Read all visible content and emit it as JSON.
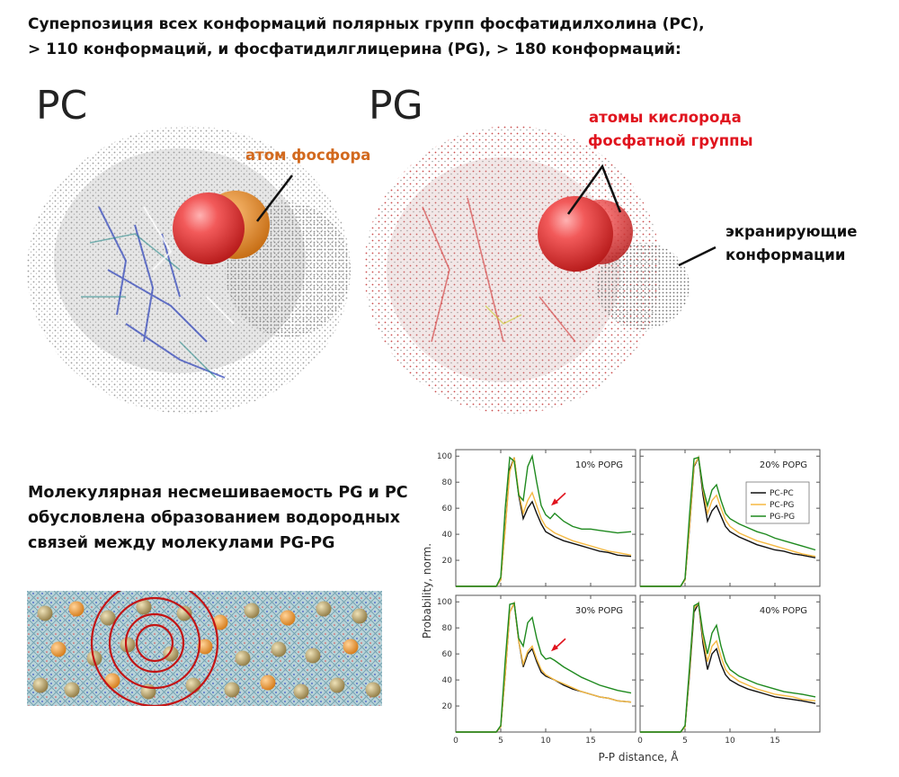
{
  "header": {
    "line1": "Суперпозиция всех конформаций полярных групп фосфатидилхолина (PC),",
    "line2": "> 110 конформаций, и фосфатидилглицерина (PG), > 180 конформаций:"
  },
  "molecules": {
    "pc_label": "PC",
    "pg_label": "PG",
    "phosphorus_label": "атом фосфора",
    "oxygen_label_line1": "атомы кислорода",
    "oxygen_label_line2": "фосфатной группы",
    "screening_label_line1": "экранирующие",
    "screening_label_line2": "конформации"
  },
  "caption": {
    "line1": "Молекулярная несмешиваемость PG и PC",
    "line2": "обусловлена образованием водородных",
    "line3": "связей между молекулами PG-PG"
  },
  "colors": {
    "accent_orange": "#d2691e",
    "accent_red": "#e0141e",
    "pc_pc": "#111111",
    "pc_pg": "#f5b942",
    "pg_pg": "#1f8a1f"
  },
  "chart_data": {
    "type": "line",
    "xlabel": "P-P distance, Å",
    "ylabel": "Probability, norm.",
    "xlim": [
      0,
      20
    ],
    "ylim": [
      0,
      105
    ],
    "xticks": [
      "0",
      "5",
      "10",
      "15"
    ],
    "yticks": [
      "20",
      "40",
      "60",
      "80",
      "100"
    ],
    "legend": [
      "PC-PC",
      "PC-PG",
      "PG-PG"
    ],
    "legend_position": "top-right panel, top-right",
    "panels": [
      {
        "title": "10% POPG",
        "arrow": true,
        "series": [
          {
            "name": "PC-PC",
            "x": [
              0,
              4.5,
              5,
              5.5,
              6,
              6.5,
              7,
              7.5,
              8,
              8.5,
              9,
              9.5,
              10,
              11,
              12,
              13,
              14,
              15,
              16,
              17,
              18,
              19.5
            ],
            "y": [
              0,
              0,
              5,
              45,
              90,
              99,
              70,
              52,
              60,
              65,
              56,
              48,
              42,
              38,
              35,
              33,
              31,
              29,
              27,
              26,
              24,
              23
            ]
          },
          {
            "name": "PC-PG",
            "x": [
              0,
              4.5,
              5,
              5.5,
              6,
              6.5,
              7,
              7.5,
              8,
              8.5,
              9,
              9.5,
              10,
              11,
              12,
              13,
              14,
              15,
              16,
              17,
              18,
              19.5
            ],
            "y": [
              0,
              0,
              5,
              44,
              88,
              99,
              72,
              56,
              66,
              72,
              62,
              52,
              46,
              41,
              38,
              35,
              33,
              31,
              29,
              27,
              26,
              24
            ]
          },
          {
            "name": "PG-PG",
            "x": [
              0,
              4.5,
              5,
              5.5,
              6,
              6.5,
              7,
              7.5,
              8,
              8.5,
              9,
              9.5,
              10,
              10.5,
              11,
              12,
              13,
              14,
              15,
              16,
              17,
              18,
              19.5
            ],
            "y": [
              0,
              0,
              7,
              60,
              99,
              96,
              70,
              66,
              92,
              100,
              80,
              62,
              55,
              52,
              56,
              50,
              46,
              44,
              44,
              43,
              42,
              41,
              42
            ]
          }
        ]
      },
      {
        "title": "20% POPG",
        "arrow": false,
        "series": [
          {
            "name": "PC-PC",
            "x": [
              0,
              4.5,
              5,
              5.5,
              6,
              6.5,
              7,
              7.5,
              8,
              8.5,
              9,
              9.5,
              10,
              11,
              12,
              13,
              14,
              15,
              16,
              17,
              18,
              19.5
            ],
            "y": [
              0,
              0,
              5,
              45,
              92,
              99,
              70,
              50,
              58,
              62,
              54,
              46,
              42,
              38,
              35,
              32,
              30,
              28,
              27,
              25,
              24,
              22
            ]
          },
          {
            "name": "PC-PG",
            "x": [
              0,
              4.5,
              5,
              5.5,
              6,
              6.5,
              7,
              7.5,
              8,
              8.5,
              9,
              9.5,
              10,
              11,
              12,
              13,
              14,
              15,
              16,
              17,
              18,
              19.5
            ],
            "y": [
              0,
              0,
              5,
              46,
              93,
              99,
              74,
              56,
              66,
              70,
              60,
              51,
              46,
              41,
              38,
              35,
              33,
              31,
              29,
              27,
              25,
              23
            ]
          },
          {
            "name": "PG-PG",
            "x": [
              0,
              4.5,
              5,
              5.5,
              6,
              6.5,
              7,
              7.5,
              8,
              8.5,
              9,
              9.5,
              10,
              11,
              12,
              13,
              14,
              15,
              16,
              17,
              18,
              19.5
            ],
            "y": [
              0,
              0,
              6,
              55,
              98,
              99,
              76,
              62,
              74,
              78,
              66,
              56,
              52,
              48,
              45,
              42,
              40,
              37,
              35,
              33,
              31,
              28
            ]
          }
        ]
      },
      {
        "title": "30% POPG",
        "arrow": true,
        "series": [
          {
            "name": "PC-PC",
            "x": [
              0,
              4.5,
              5,
              5.5,
              6,
              6.5,
              7,
              7.5,
              8,
              8.5,
              9,
              9.5,
              10,
              11,
              12,
              13,
              14,
              15,
              16,
              17,
              18,
              19.5
            ],
            "y": [
              0,
              0,
              4,
              44,
              92,
              99,
              70,
              50,
              60,
              64,
              54,
              46,
              43,
              40,
              36,
              33,
              31,
              29,
              27,
              26,
              24,
              23
            ]
          },
          {
            "name": "PC-PG",
            "x": [
              0,
              4.5,
              5,
              5.5,
              6,
              6.5,
              7,
              7.5,
              8,
              8.5,
              9,
              9.5,
              10,
              11,
              12,
              13,
              14,
              15,
              16,
              17,
              18,
              19.5
            ],
            "y": [
              0,
              0,
              4,
              44,
              92,
              99,
              70,
              52,
              62,
              66,
              56,
              48,
              44,
              40,
              37,
              34,
              31,
              29,
              27,
              26,
              24,
              23
            ]
          },
          {
            "name": "PG-PG",
            "x": [
              0,
              4.5,
              5,
              5.5,
              6,
              6.5,
              7,
              7.5,
              8,
              8.5,
              9,
              9.5,
              10,
              10.5,
              11,
              12,
              13,
              14,
              15,
              16,
              17,
              18,
              19.5
            ],
            "y": [
              0,
              0,
              5,
              55,
              98,
              99,
              72,
              66,
              84,
              88,
              72,
              60,
              56,
              57,
              55,
              50,
              46,
              42,
              39,
              36,
              34,
              32,
              30
            ]
          }
        ]
      },
      {
        "title": "40% POPG",
        "arrow": false,
        "series": [
          {
            "name": "PC-PC",
            "x": [
              0,
              4.5,
              5,
              5.5,
              6,
              6.5,
              7,
              7.5,
              8,
              8.5,
              9,
              9.5,
              10,
              11,
              12,
              13,
              14,
              15,
              16,
              17,
              18,
              19.5
            ],
            "y": [
              0,
              0,
              4,
              44,
              92,
              99,
              68,
              48,
              60,
              64,
              52,
              44,
              40,
              36,
              33,
              31,
              29,
              27,
              26,
              25,
              24,
              22
            ]
          },
          {
            "name": "PC-PG",
            "x": [
              0,
              4.5,
              5,
              5.5,
              6,
              6.5,
              7,
              7.5,
              8,
              8.5,
              9,
              9.5,
              10,
              11,
              12,
              13,
              14,
              15,
              16,
              17,
              18,
              19.5
            ],
            "y": [
              0,
              0,
              4,
              46,
              95,
              99,
              72,
              54,
              66,
              70,
              58,
              48,
              44,
              39,
              36,
              33,
              31,
              29,
              28,
              27,
              25,
              24
            ]
          },
          {
            "name": "PG-PG",
            "x": [
              0,
              4.5,
              5,
              5.5,
              6,
              6.5,
              7,
              7.5,
              8,
              8.5,
              9,
              9.5,
              10,
              11,
              12,
              13,
              14,
              15,
              16,
              17,
              18,
              19.5
            ],
            "y": [
              0,
              0,
              5,
              50,
              97,
              99,
              76,
              60,
              76,
              82,
              66,
              54,
              48,
              43,
              40,
              37,
              35,
              33,
              31,
              30,
              29,
              27
            ]
          }
        ]
      }
    ]
  }
}
